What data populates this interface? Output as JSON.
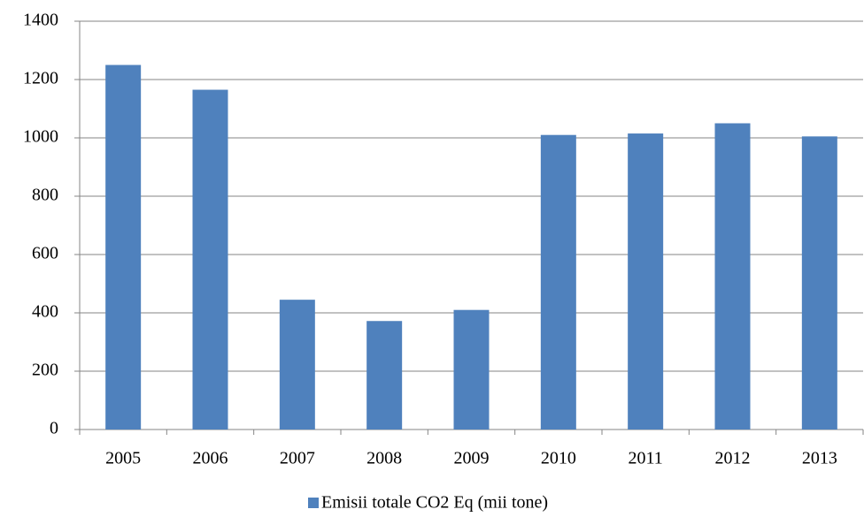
{
  "chart_data": {
    "type": "bar",
    "categories": [
      "2005",
      "2006",
      "2007",
      "2008",
      "2009",
      "2010",
      "2011",
      "2012",
      "2013"
    ],
    "series": [
      {
        "name": "Emisii totale CO2 Eq (mii tone)",
        "color": "#4f81bd",
        "values": [
          1250,
          1165,
          445,
          372,
          410,
          1010,
          1015,
          1050,
          1005
        ]
      }
    ],
    "ylim": [
      0,
      1400
    ],
    "yticks": [
      0,
      200,
      400,
      600,
      800,
      1000,
      1200,
      1400
    ],
    "grid": true,
    "legend": "bottom"
  }
}
